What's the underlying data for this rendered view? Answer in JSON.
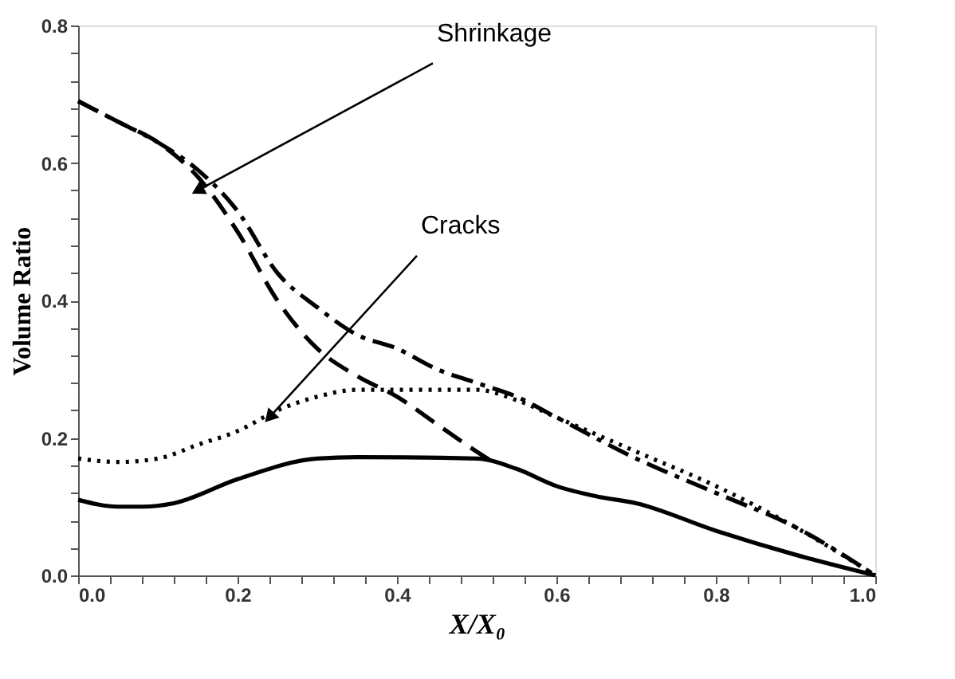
{
  "chart_data": {
    "type": "line",
    "xlabel": "X/X₀",
    "ylabel": "Volume Ratio",
    "xlim": [
      0,
      1
    ],
    "ylim": [
      0,
      0.8
    ],
    "xticks": [
      {
        "value": 0,
        "label": "0.0"
      },
      {
        "value": 0.04,
        "label": null
      },
      {
        "value": 0.08,
        "label": null
      },
      {
        "value": 0.12,
        "label": null
      },
      {
        "value": 0.16,
        "label": null
      },
      0.2,
      {
        "value": 0.24,
        "label": null
      },
      {
        "value": 0.28,
        "label": null
      },
      {
        "value": 0.32,
        "label": null
      },
      {
        "value": 0.36,
        "label": null
      },
      0.4,
      {
        "value": 0.44,
        "label": null
      },
      {
        "value": 0.48,
        "label": null
      },
      {
        "value": 0.52,
        "label": null
      },
      {
        "value": 0.56,
        "label": null
      },
      0.6,
      {
        "value": 0.64,
        "label": null
      },
      {
        "value": 0.68,
        "label": null
      },
      {
        "value": 0.72,
        "label": null
      },
      {
        "value": 0.76,
        "label": null
      },
      0.8,
      {
        "value": 0.84,
        "label": null
      },
      {
        "value": 0.88,
        "label": null
      },
      {
        "value": 0.92,
        "label": null
      },
      {
        "value": 0.96,
        "label": null
      },
      {
        "value": 1,
        "label": "1.0"
      }
    ],
    "yticks": [
      {
        "value": 0,
        "label": "0.0"
      },
      {
        "value": 0.04,
        "label": null
      },
      {
        "value": 0.08,
        "label": null
      },
      {
        "value": 0.12,
        "label": null
      },
      {
        "value": 0.16,
        "label": null
      },
      0.2,
      {
        "value": 0.24,
        "label": null
      },
      {
        "value": 0.28,
        "label": null
      },
      {
        "value": 0.32,
        "label": null
      },
      {
        "value": 0.36,
        "label": null
      },
      0.4,
      {
        "value": 0.44,
        "label": null
      },
      {
        "value": 0.48,
        "label": null
      },
      {
        "value": 0.52,
        "label": null
      },
      {
        "value": 0.56,
        "label": null
      },
      0.6,
      {
        "value": 0.64,
        "label": null
      },
      {
        "value": 0.68,
        "label": null
      },
      {
        "value": 0.72,
        "label": null
      },
      {
        "value": 0.76,
        "label": null
      },
      0.8
    ],
    "grid": false,
    "marker": "none",
    "series": [
      {
        "color": "#000000",
        "line_style": "dashed",
        "x": [
          0,
          0.05,
          0.1,
          0.15,
          0.2,
          0.25,
          0.3,
          0.35,
          0.4,
          0.45,
          0.5,
          0.52
        ],
        "values": [
          0.69,
          0.66,
          0.63,
          0.58,
          0.5,
          0.4,
          0.33,
          0.29,
          0.26,
          0.22,
          0.18,
          0.165
        ]
      },
      {
        "color": "#000000",
        "line_style": "dashdot",
        "x": [
          0,
          0.05,
          0.1,
          0.15,
          0.2,
          0.25,
          0.3,
          0.35,
          0.4,
          0.45,
          0.5,
          0.55,
          0.6,
          0.7,
          0.8,
          0.9,
          1.0
        ],
        "values": [
          0.69,
          0.66,
          0.63,
          0.59,
          0.53,
          0.44,
          0.39,
          0.35,
          0.33,
          0.3,
          0.28,
          0.26,
          0.23,
          0.17,
          0.12,
          0.07,
          0.0
        ]
      },
      {
        "color": "#000000",
        "line_style": "dotted",
        "x": [
          0,
          0.05,
          0.1,
          0.15,
          0.2,
          0.25,
          0.3,
          0.35,
          0.4,
          0.45,
          0.5,
          0.55,
          0.6,
          0.7,
          0.8,
          0.9,
          1.0
        ],
        "values": [
          0.17,
          0.165,
          0.17,
          0.19,
          0.21,
          0.24,
          0.26,
          0.27,
          0.27,
          0.27,
          0.27,
          0.255,
          0.23,
          0.18,
          0.13,
          0.07,
          0.0
        ]
      },
      {
        "color": "#000000",
        "line_style": "solid",
        "x": [
          0,
          0.05,
          0.08,
          0.12,
          0.2,
          0.3,
          0.35,
          0.5,
          0.55,
          0.6,
          0.65,
          0.7,
          0.8,
          0.9,
          1.0
        ],
        "values": [
          0.11,
          0.1,
          0.1,
          0.105,
          0.14,
          0.17,
          0.172,
          0.17,
          0.155,
          0.13,
          0.115,
          0.105,
          0.065,
          0.03,
          0.0
        ]
      }
    ],
    "annotations": [
      {
        "text": "Shrinkage",
        "x": 0.15,
        "y": 0.56
      },
      {
        "text": "Cracks",
        "x": 0.24,
        "y": 0.23
      }
    ]
  }
}
